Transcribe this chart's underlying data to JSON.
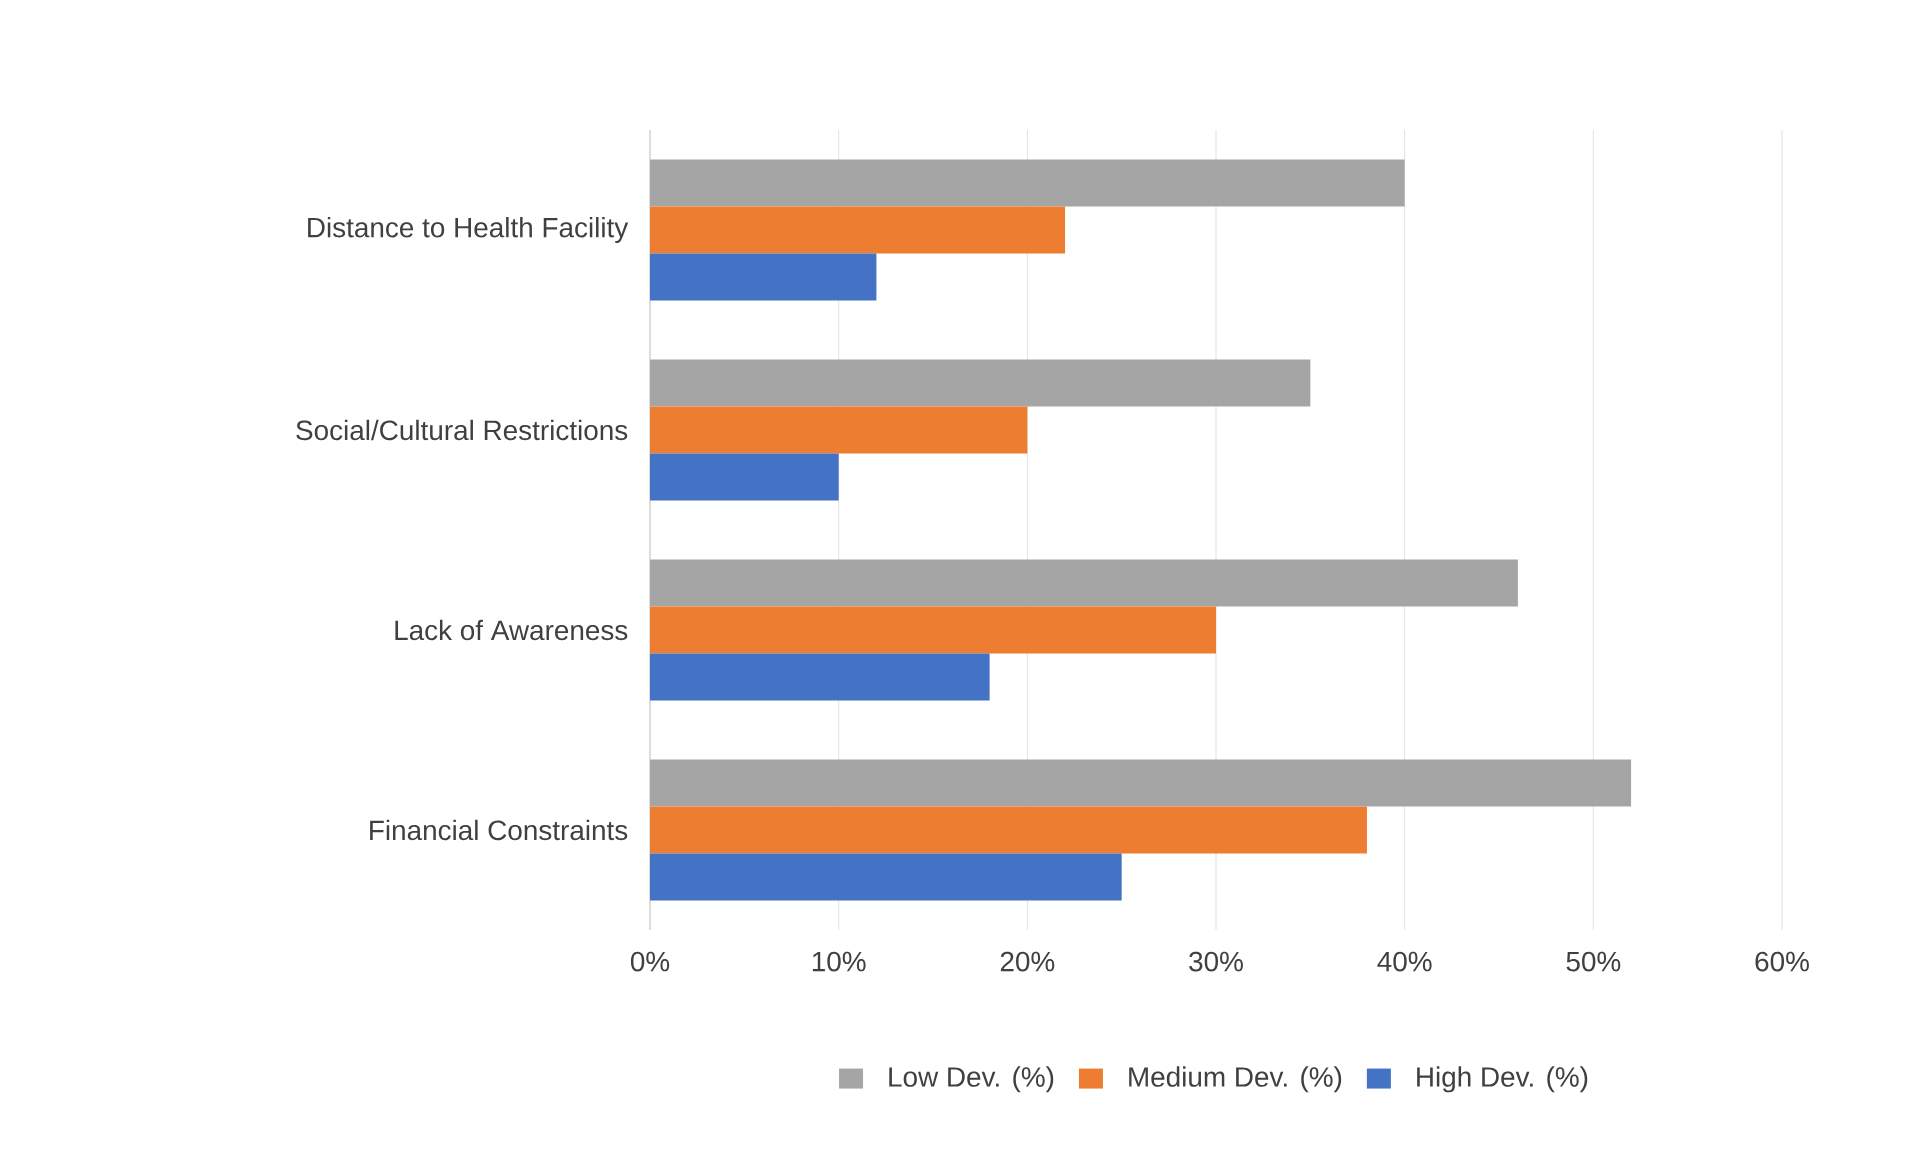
{
  "chart_data": {
    "type": "bar",
    "orientation": "horizontal",
    "categories": [
      "Distance to Health Facility",
      "Social/Cultural Restrictions",
      "Lack of Awareness",
      "Financial Constraints"
    ],
    "series": [
      {
        "name": "Low Dev. (%)",
        "color": "#a5a5a5",
        "values": [
          40,
          35,
          46,
          52
        ]
      },
      {
        "name": "Medium Dev. (%)",
        "color": "#ed7d31",
        "values": [
          22,
          20,
          30,
          38
        ]
      },
      {
        "name": "High Dev. (%)",
        "color": "#4472c4",
        "values": [
          12,
          10,
          18,
          25
        ]
      }
    ],
    "xlim": [
      0,
      60
    ],
    "xticks": [
      {
        "value": 0,
        "label": "0%"
      },
      {
        "value": 10,
        "label": "10%"
      },
      {
        "value": 20,
        "label": "20%"
      },
      {
        "value": 30,
        "label": "30%"
      },
      {
        "value": 40,
        "label": "40%"
      },
      {
        "value": 50,
        "label": "50%"
      },
      {
        "value": 60,
        "label": "60%"
      }
    ],
    "grid": "x",
    "legend": "bottom"
  }
}
